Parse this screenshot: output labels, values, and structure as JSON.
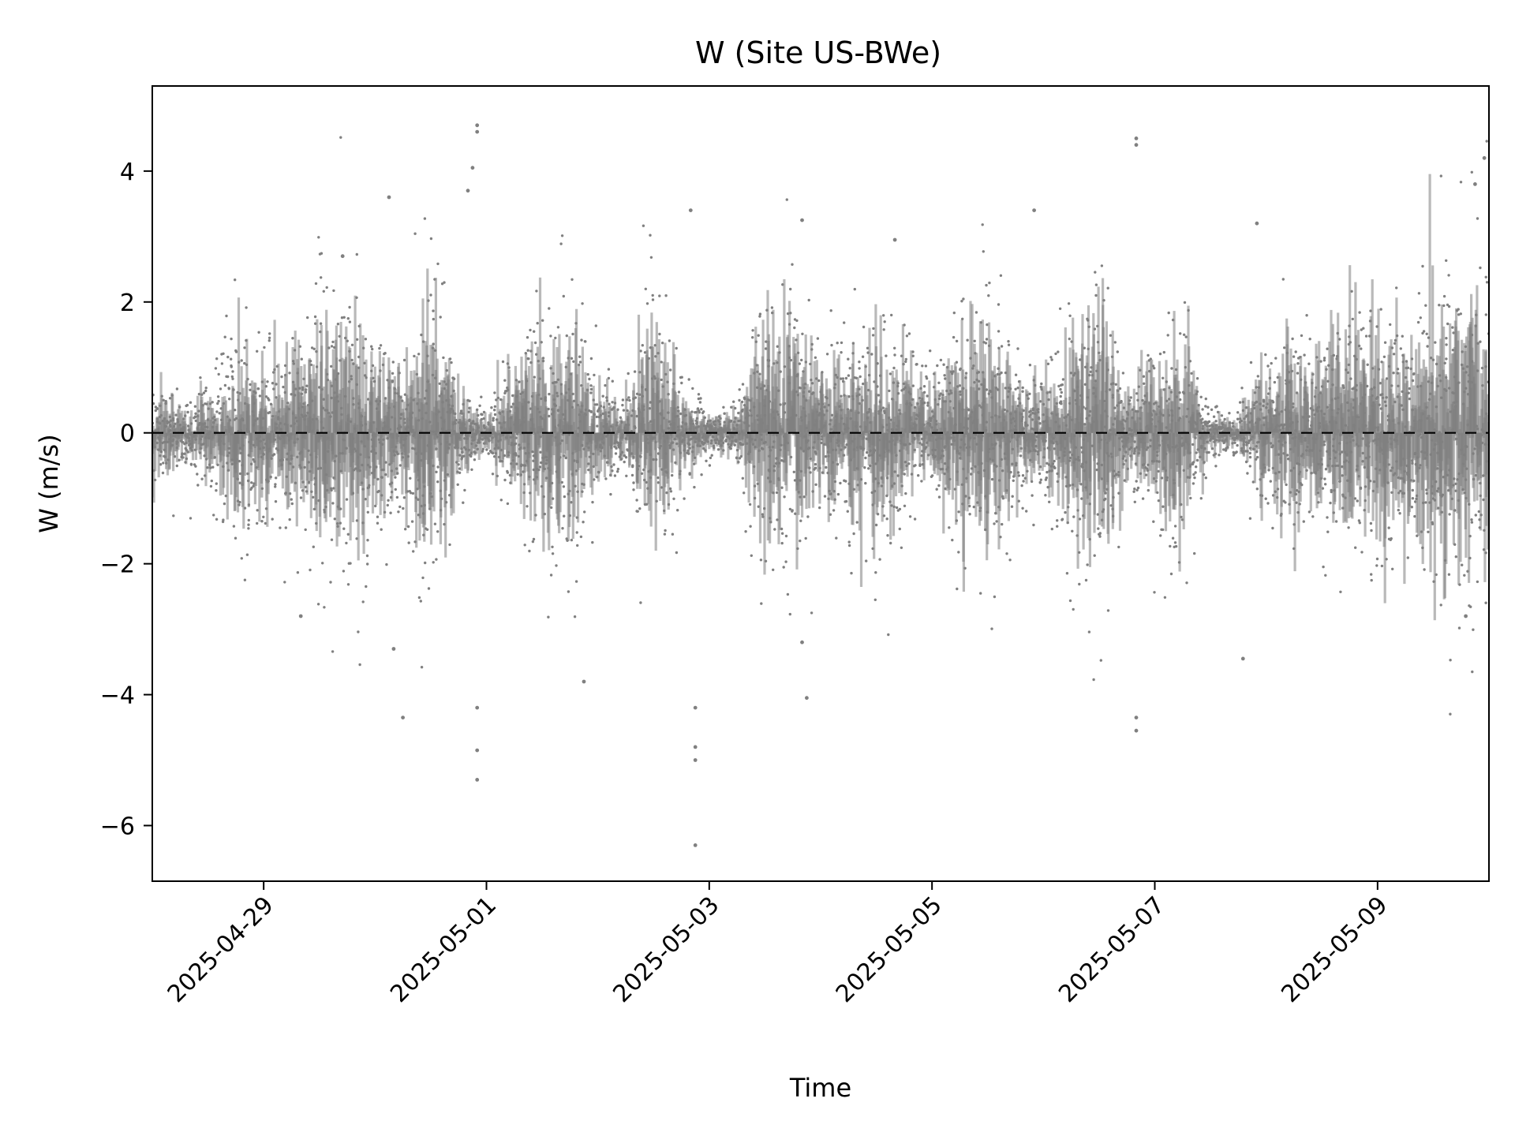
{
  "chart_data": {
    "type": "scatter",
    "title": "W (Site US-BWe)",
    "xlabel": "Time",
    "ylabel": "W (m/s)",
    "x_axis": "date",
    "xlim": [
      "2025-04-28 00:00",
      "2025-05-10 00:00"
    ],
    "ylim": [
      -6.85,
      5.3
    ],
    "x_ticks": [
      "2025-04-29",
      "2025-05-01",
      "2025-05-03",
      "2025-05-05",
      "2025-05-07",
      "2025-05-09"
    ],
    "y_ticks": [
      -6,
      -4,
      -2,
      0,
      2,
      4
    ],
    "y_tick_labels": [
      "−6",
      "−4",
      "−2",
      "0",
      "2",
      "4"
    ],
    "reference_line": {
      "y": 0,
      "style": "dashed",
      "color": "#000000"
    },
    "grid": false,
    "legend": "none",
    "series": [
      {
        "color": "#808080",
        "envelope": {
          "x": [
            "2025-04-28 00:00",
            "2025-04-28 06:00",
            "2025-04-28 12:00",
            "2025-04-28 18:00",
            "2025-04-29 00:00",
            "2025-04-29 06:00",
            "2025-04-29 12:00",
            "2025-04-29 18:00",
            "2025-04-30 00:00",
            "2025-04-30 06:00",
            "2025-04-30 12:00",
            "2025-04-30 18:00",
            "2025-05-01 00:00",
            "2025-05-01 06:00",
            "2025-05-01 12:00",
            "2025-05-01 18:00",
            "2025-05-02 00:00",
            "2025-05-02 06:00",
            "2025-05-02 12:00",
            "2025-05-02 18:00",
            "2025-05-03 00:00",
            "2025-05-03 06:00",
            "2025-05-03 12:00",
            "2025-05-03 18:00",
            "2025-05-04 00:00",
            "2025-05-04 06:00",
            "2025-05-04 12:00",
            "2025-05-04 18:00",
            "2025-05-05 00:00",
            "2025-05-05 06:00",
            "2025-05-05 12:00",
            "2025-05-05 18:00",
            "2025-05-06 00:00",
            "2025-05-06 06:00",
            "2025-05-06 12:00",
            "2025-05-06 18:00",
            "2025-05-07 00:00",
            "2025-05-07 06:00",
            "2025-05-07 12:00",
            "2025-05-07 18:00",
            "2025-05-08 00:00",
            "2025-05-08 06:00",
            "2025-05-08 12:00",
            "2025-05-08 18:00",
            "2025-05-09 00:00",
            "2025-05-09 06:00",
            "2025-05-09 12:00",
            "2025-05-09 18:00",
            "2025-05-10 00:00"
          ],
          "upper": [
            0.8,
            0.5,
            0.6,
            1.6,
            1.4,
            0.9,
            2.0,
            2.2,
            1.5,
            0.9,
            2.3,
            0.7,
            0.3,
            1.2,
            1.9,
            1.8,
            0.9,
            0.5,
            2.1,
            0.7,
            0.3,
            0.4,
            1.9,
            2.0,
            1.0,
            1.3,
            1.8,
            1.3,
            0.8,
            1.6,
            1.8,
            1.1,
            0.8,
            1.3,
            2.0,
            0.6,
            1.3,
            1.7,
            0.3,
            0.3,
            1.1,
            1.6,
            1.2,
            1.9,
            1.8,
            1.4,
            2.3,
            2.5,
            2.6
          ],
          "lower": [
            -0.7,
            -0.4,
            -0.7,
            -1.6,
            -1.2,
            -0.9,
            -2.1,
            -2.3,
            -1.5,
            -0.9,
            -2.5,
            -0.7,
            -0.3,
            -1.0,
            -1.7,
            -1.7,
            -0.9,
            -0.5,
            -2.0,
            -0.8,
            -0.3,
            -0.4,
            -1.9,
            -2.1,
            -1.1,
            -1.2,
            -1.8,
            -1.3,
            -0.7,
            -1.6,
            -1.9,
            -1.1,
            -0.8,
            -1.7,
            -2.6,
            -0.6,
            -1.3,
            -1.8,
            -0.3,
            -0.3,
            -1.0,
            -1.5,
            -1.2,
            -2.0,
            -1.7,
            -1.5,
            -2.3,
            -2.5,
            -2.6
          ]
        },
        "outliers": [
          {
            "x": "2025-04-29 08:00",
            "y": -2.8
          },
          {
            "x": "2025-04-29 17:00",
            "y": 2.7
          },
          {
            "x": "2025-04-30 03:00",
            "y": 3.6
          },
          {
            "x": "2025-04-30 04:00",
            "y": -3.3
          },
          {
            "x": "2025-04-30 06:00",
            "y": -4.35
          },
          {
            "x": "2025-04-30 20:00",
            "y": 3.7
          },
          {
            "x": "2025-04-30 21:00",
            "y": 4.05
          },
          {
            "x": "2025-04-30 22:00",
            "y": 4.6
          },
          {
            "x": "2025-04-30 22:00",
            "y": 4.7
          },
          {
            "x": "2025-04-30 22:00",
            "y": -4.2
          },
          {
            "x": "2025-04-30 22:00",
            "y": -4.85
          },
          {
            "x": "2025-04-30 22:00",
            "y": -5.3
          },
          {
            "x": "2025-05-01 21:00",
            "y": -3.8
          },
          {
            "x": "2025-05-02 20:00",
            "y": 3.4
          },
          {
            "x": "2025-05-02 21:00",
            "y": -4.2
          },
          {
            "x": "2025-05-02 21:00",
            "y": -4.8
          },
          {
            "x": "2025-05-02 21:00",
            "y": -5.0
          },
          {
            "x": "2025-05-02 21:00",
            "y": -6.3
          },
          {
            "x": "2025-05-03 20:00",
            "y": 3.25
          },
          {
            "x": "2025-05-03 20:00",
            "y": -3.2
          },
          {
            "x": "2025-05-03 21:00",
            "y": -4.05
          },
          {
            "x": "2025-05-04 16:00",
            "y": 2.95
          },
          {
            "x": "2025-05-05 22:00",
            "y": 3.4
          },
          {
            "x": "2025-05-06 20:00",
            "y": 4.5
          },
          {
            "x": "2025-05-06 20:00",
            "y": 4.4
          },
          {
            "x": "2025-05-06 20:00",
            "y": -4.35
          },
          {
            "x": "2025-05-06 20:00",
            "y": -4.55
          },
          {
            "x": "2025-05-07 19:00",
            "y": -3.45
          },
          {
            "x": "2025-05-07 22:00",
            "y": 3.2
          },
          {
            "x": "2025-05-09 19:00",
            "y": -2.8
          },
          {
            "x": "2025-05-09 21:00",
            "y": 3.8
          },
          {
            "x": "2025-05-09 23:00",
            "y": 4.2
          }
        ]
      }
    ]
  }
}
